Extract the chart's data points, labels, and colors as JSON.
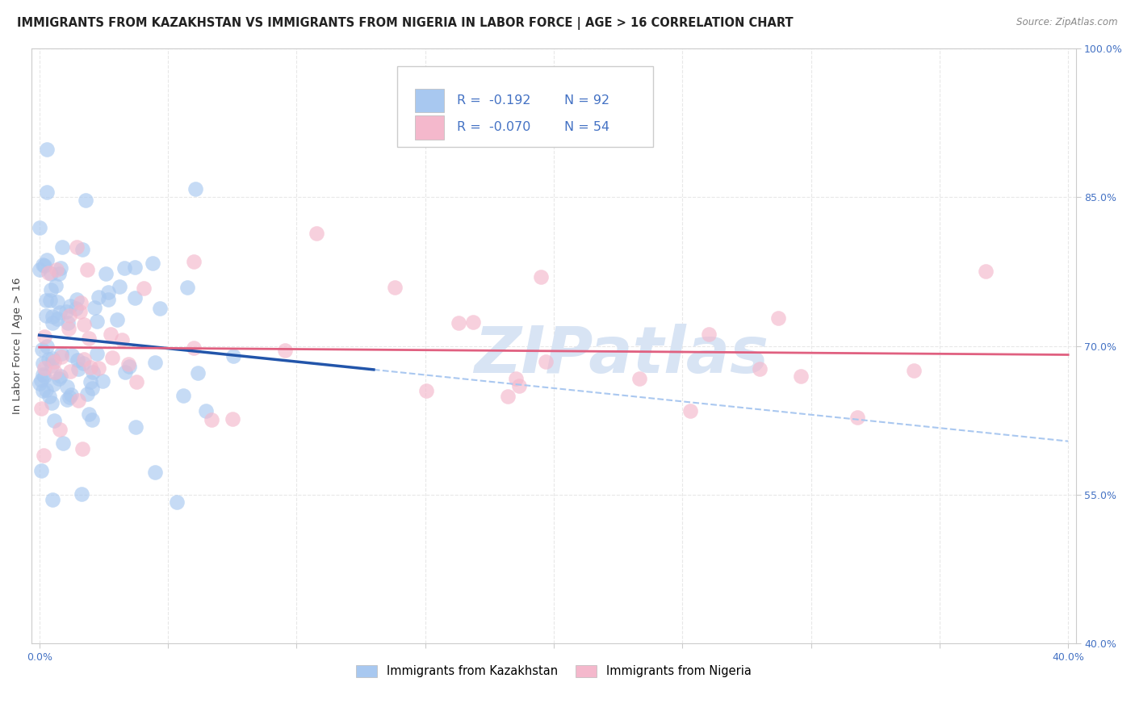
{
  "title": "IMMIGRANTS FROM KAZAKHSTAN VS IMMIGRANTS FROM NIGERIA IN LABOR FORCE | AGE > 16 CORRELATION CHART",
  "source": "Source: ZipAtlas.com",
  "ylabel": "In Labor Force | Age > 16",
  "xlim": [
    0.0,
    0.4
  ],
  "ylim": [
    0.4,
    1.0
  ],
  "xticks": [
    0.0,
    0.05,
    0.1,
    0.15,
    0.2,
    0.25,
    0.3,
    0.35,
    0.4
  ],
  "yticks": [
    0.4,
    0.55,
    0.7,
    0.85,
    1.0
  ],
  "yticklabels": [
    "40.0%",
    "55.0%",
    "70.0%",
    "85.0%",
    "100.0%"
  ],
  "kazakhstan_color": "#a8c8f0",
  "nigeria_color": "#f4b8cc",
  "kazakhstan_line_solid_color": "#2255aa",
  "kazakhstan_line_dash_color": "#aac8f0",
  "nigeria_line_color": "#e06080",
  "watermark_text": "ZIPatlas",
  "watermark_color": "#d8e4f4",
  "background_color": "#ffffff",
  "grid_color": "#e8e8e8",
  "grid_style": "--",
  "title_fontsize": 10.5,
  "tick_fontsize": 9,
  "legend_text_color": "#4472c4",
  "legend_R1": "R =  -0.192",
  "legend_N1": "N = 92",
  "legend_R2": "R =  -0.070",
  "legend_N2": "N = 54",
  "kazakhstan_seed": 13,
  "nigeria_seed": 7
}
